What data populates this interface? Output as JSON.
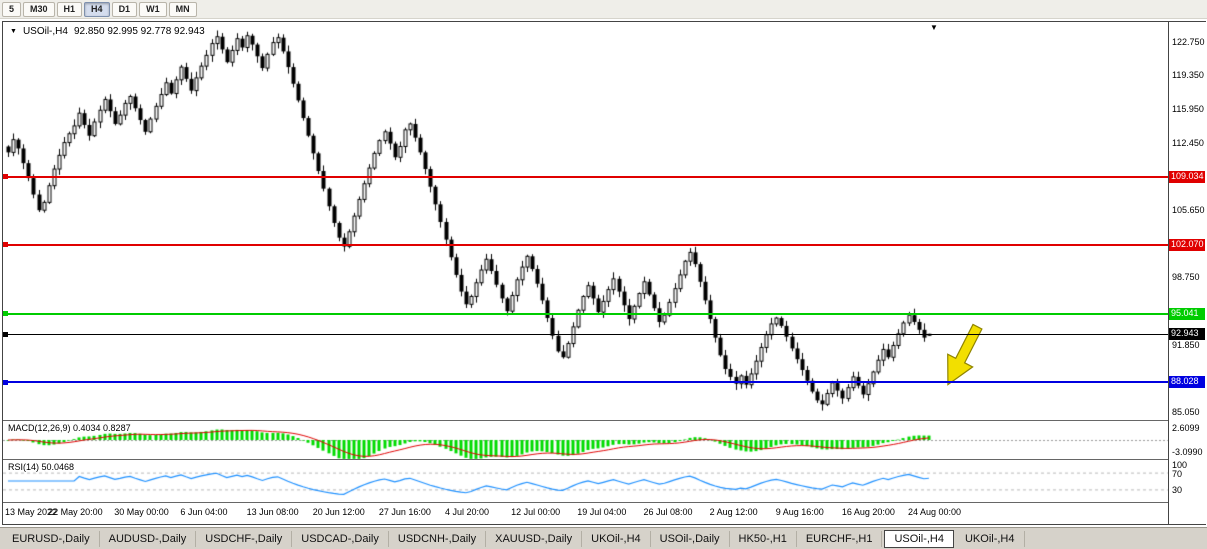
{
  "toolbar": {
    "timeframes": [
      {
        "label": "5",
        "active": false
      },
      {
        "label": "M30",
        "active": false
      },
      {
        "label": "H1",
        "active": false
      },
      {
        "label": "H4",
        "active": true
      },
      {
        "label": "D1",
        "active": false
      },
      {
        "label": "W1",
        "active": false
      },
      {
        "label": "MN",
        "active": false
      }
    ]
  },
  "icons": {
    "marker": "▼"
  },
  "chart": {
    "title": "USOil-,H4",
    "ohlc": "92.850 92.995 92.778 92.943"
  },
  "price_axis": {
    "ticks": [
      {
        "label": "122.750",
        "value": 122.75
      },
      {
        "label": "119.350",
        "value": 119.35
      },
      {
        "label": "115.950",
        "value": 115.95
      },
      {
        "label": "112.450",
        "value": 112.45
      },
      {
        "label": "105.650",
        "value": 105.65
      },
      {
        "label": "98.750",
        "value": 98.75
      },
      {
        "label": "91.850",
        "value": 91.85
      },
      {
        "label": "85.050",
        "value": 85.05
      }
    ]
  },
  "indicators": {
    "macd": {
      "label": "MACD(12,26,9) 0.4034 0.8287",
      "params": [
        12,
        26,
        9
      ],
      "current_values": [
        0.4034,
        0.8287
      ],
      "axis_labels": [
        "2.6099",
        "-3.0990"
      ]
    },
    "rsi": {
      "label": "RSI(14) 50.0468",
      "period": 14,
      "current_value": 50.0468,
      "axis_labels": [
        {
          "text": "100",
          "value": 100
        },
        {
          "text": "70",
          "value": 70
        },
        {
          "text": "30",
          "value": 30
        }
      ]
    }
  },
  "tabs": [
    {
      "label": "EURUSD-,Daily",
      "active": false
    },
    {
      "label": "AUDUSD-,Daily",
      "active": false
    },
    {
      "label": "USDCHF-,Daily",
      "active": false
    },
    {
      "label": "USDCAD-,Daily",
      "active": false
    },
    {
      "label": "USDCNH-,Daily",
      "active": false
    },
    {
      "label": "XAUUSD-,Daily",
      "active": false
    },
    {
      "label": "UKOil-,H4",
      "active": false
    },
    {
      "label": "USOil-,Daily",
      "active": false
    },
    {
      "label": "HK50-,H1",
      "active": false
    },
    {
      "label": "EURCHF-,H1",
      "active": false
    },
    {
      "label": "USOil-,H4",
      "active": true
    },
    {
      "label": "UKOil-,H4",
      "active": false
    }
  ],
  "chart_data": {
    "type": "candlestick",
    "symbol": "USOil-",
    "timeframe": "H4",
    "title": "USOil-,H4",
    "y_range": [
      84.2,
      124.8
    ],
    "last_candle": {
      "open": 92.85,
      "high": 92.995,
      "low": 92.778,
      "close": 92.943
    },
    "candles_per_label": 13,
    "x_labels": [
      "13 May 2022",
      "22 May 20:00",
      "30 May 00:00",
      "6 Jun 04:00",
      "13 Jun 08:00",
      "20 Jun 12:00",
      "27 Jun 16:00",
      "4 Jul 20:00",
      "12 Jul 00:00",
      "19 Jul 04:00",
      "26 Jul 08:00",
      "2 Aug 12:00",
      "9 Aug 16:00",
      "16 Aug 20:00",
      "24 Aug 00:00"
    ],
    "hlines": [
      {
        "price": 109.034,
        "label": "109.034",
        "color": "#e00000",
        "thickness": 2
      },
      {
        "price": 102.07,
        "label": "102.070",
        "color": "#e00000",
        "thickness": 2
      },
      {
        "price": 95.041,
        "label": "95.041",
        "color": "#00cc00",
        "thickness": 2
      },
      {
        "price": 92.943,
        "label": "92.943",
        "color": "#000000",
        "thickness": 1
      },
      {
        "price": 88.028,
        "label": "88.028",
        "color": "#0000e0",
        "thickness": 2
      }
    ],
    "closes": [
      111.5,
      112.8,
      111.9,
      110.4,
      108.9,
      107.2,
      105.6,
      106.4,
      108.1,
      109.8,
      111.2,
      112.5,
      113.4,
      114.2,
      115.5,
      114.3,
      113.2,
      114.6,
      115.8,
      116.9,
      115.7,
      114.4,
      115.3,
      116.5,
      117.2,
      116.0,
      114.8,
      113.6,
      114.9,
      116.2,
      117.4,
      118.6,
      117.5,
      118.9,
      120.2,
      119.0,
      117.8,
      119.1,
      120.3,
      121.4,
      122.6,
      123.3,
      122.0,
      120.7,
      121.9,
      123.1,
      122.2,
      123.4,
      122.5,
      121.3,
      120.1,
      121.5,
      122.7,
      123.2,
      121.8,
      120.2,
      118.5,
      116.8,
      115.0,
      113.2,
      111.4,
      109.6,
      107.8,
      106.0,
      104.3,
      102.8,
      101.9,
      103.4,
      105.0,
      106.7,
      108.3,
      109.9,
      111.4,
      112.7,
      113.6,
      112.4,
      111.0,
      112.1,
      113.8,
      114.4,
      113.0,
      111.5,
      109.8,
      108.0,
      106.2,
      104.4,
      102.6,
      100.8,
      99.0,
      97.3,
      96.0,
      96.8,
      98.2,
      99.5,
      100.6,
      99.4,
      98.0,
      96.6,
      95.3,
      96.9,
      98.5,
      99.8,
      100.9,
      99.6,
      98.1,
      96.4,
      94.6,
      92.8,
      91.2,
      90.6,
      92.0,
      93.7,
      95.4,
      96.8,
      97.9,
      96.6,
      95.2,
      96.3,
      97.5,
      98.6,
      97.3,
      95.9,
      94.5,
      95.8,
      97.1,
      98.3,
      97.0,
      95.6,
      94.2,
      94.9,
      96.2,
      97.6,
      99.0,
      100.4,
      101.3,
      100.1,
      98.3,
      96.4,
      94.5,
      92.6,
      90.8,
      89.4,
      88.6,
      87.9,
      88.7,
      87.8,
      88.9,
      90.2,
      91.6,
      92.9,
      94.0,
      94.6,
      93.8,
      92.7,
      91.5,
      90.4,
      89.3,
      88.2,
      87.1,
      86.2,
      85.8,
      86.9,
      88.0,
      87.2,
      86.4,
      87.5,
      88.6,
      87.7,
      86.8,
      87.9,
      89.1,
      90.3,
      91.4,
      90.6,
      91.8,
      93.0,
      94.1,
      94.9,
      94.2,
      93.4,
      92.6,
      92.943
    ]
  }
}
